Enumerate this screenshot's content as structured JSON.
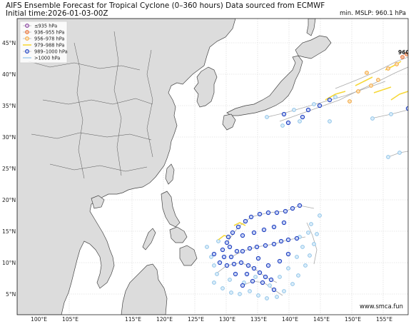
{
  "header": {
    "title": "AIFS Ensemble Forecast for Tropical Cyclone (0–360 hours) Data sourced from ECMWF",
    "init_time": "Initial time:2026-01-03-00Z",
    "min_mslp": "min. MSLP: 960.1 hPa"
  },
  "map": {
    "lat_ticks": [
      "45°N",
      "40°N",
      "35°N",
      "30°N",
      "25°N",
      "20°N",
      "15°N",
      "10°N",
      "5°N"
    ],
    "lon_ticks": [
      "100°E",
      "105°E",
      "115°E",
      "120°E",
      "125°E",
      "130°E",
      "135°E",
      "140°E",
      "145°E",
      "150°E",
      "155°E"
    ],
    "peak_label": "960",
    "credit": "www.smca.fun",
    "colors": {
      "land": "#dcdcdc",
      "ocean": "#ffffff",
      "border": "#555555",
      "track": "#aaaaaa"
    }
  },
  "legend": {
    "items": [
      {
        "label": "≤935 hPa",
        "color": "#7b3294",
        "shape": "circle"
      },
      {
        "label": "936–955 hPa",
        "color": "#e8713a",
        "shape": "circle"
      },
      {
        "label": "956–978 hPa",
        "color": "#f4a43a",
        "shape": "circle"
      },
      {
        "label": "979–988 hPa",
        "color": "#f6d83a",
        "shape": "line"
      },
      {
        "label": "989–1000 hPa",
        "color": "#1f3fbf",
        "shape": "circle"
      },
      {
        "label": ">1000 hPa",
        "color": "#8fc3e8",
        "shape": "line"
      }
    ]
  }
}
